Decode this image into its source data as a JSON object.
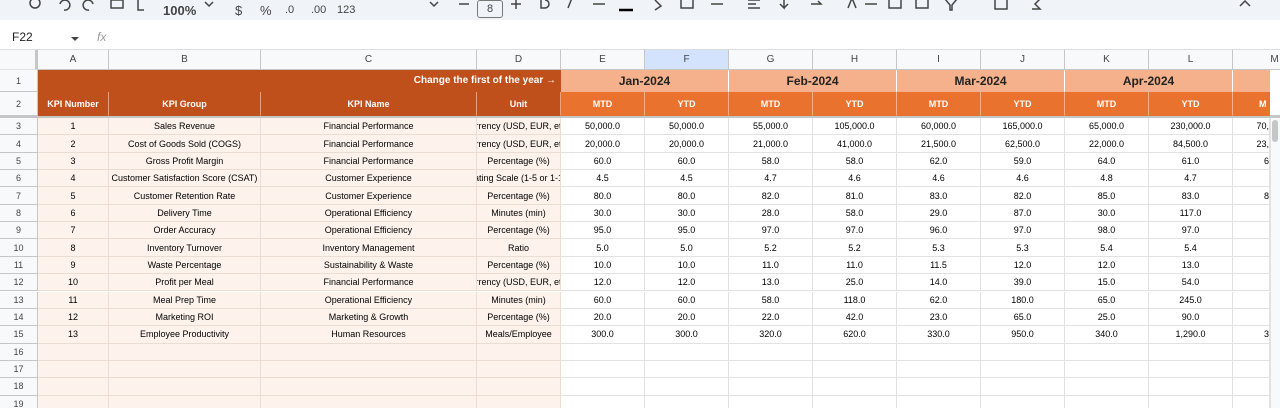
{
  "toolbar": {
    "zoom": "100%",
    "currency": "$",
    "percent": "%",
    "decrease_decimals": ".0",
    "increase_decimals": ".00",
    "more_formats": "123",
    "font_size": "8"
  },
  "formula_bar": {
    "cell_ref": "F22",
    "fx": "fx"
  },
  "columns": [
    "A",
    "B",
    "C",
    "D",
    "E",
    "F",
    "G",
    "H",
    "I",
    "J",
    "K",
    "L",
    "M"
  ],
  "row_numbers": [
    1,
    2,
    3,
    4,
    5,
    6,
    7,
    8,
    9,
    10,
    11,
    12,
    13,
    14,
    15,
    16,
    17,
    18,
    19
  ],
  "header": {
    "banner": "Change the first of the year →",
    "months": [
      "Jan-2024",
      "Feb-2024",
      "Mar-2024",
      "Apr-2024"
    ],
    "column_titles": [
      "KPI Number",
      "KPI Group",
      "KPI Name",
      "Unit"
    ],
    "subheaders": [
      "MTD",
      "YTD",
      "MTD",
      "YTD",
      "MTD",
      "YTD",
      "MTD",
      "YTD"
    ],
    "partial_subheader": "M"
  },
  "table": {
    "rows": [
      [
        "1",
        "Sales Revenue",
        "Financial Performance",
        "rrency (USD, EUR, et",
        "50,000.0",
        "50,000.0",
        "55,000.0",
        "105,000.0",
        "60,000.0",
        "165,000.0",
        "65,000.0",
        "230,000.0"
      ],
      [
        "2",
        "Cost of Goods Sold (COGS)",
        "Financial Performance",
        "rrency (USD, EUR, et",
        "20,000.0",
        "20,000.0",
        "21,000.0",
        "41,000.0",
        "21,500.0",
        "62,500.0",
        "22,000.0",
        "84,500.0"
      ],
      [
        "3",
        "Gross Profit Margin",
        "Financial Performance",
        "Percentage (%)",
        "60.0",
        "60.0",
        "58.0",
        "58.0",
        "62.0",
        "59.0",
        "64.0",
        "61.0"
      ],
      [
        "4",
        "Customer Satisfaction Score (CSAT)",
        "Customer Experience",
        "ating Scale (1-5 or 1-1",
        "4.5",
        "4.5",
        "4.7",
        "4.6",
        "4.6",
        "4.6",
        "4.8",
        "4.7"
      ],
      [
        "5",
        "Customer Retention Rate",
        "Customer Experience",
        "Percentage (%)",
        "80.0",
        "80.0",
        "82.0",
        "81.0",
        "83.0",
        "82.0",
        "85.0",
        "83.0"
      ],
      [
        "6",
        "Delivery Time",
        "Operational Efficiency",
        "Minutes (min)",
        "30.0",
        "30.0",
        "28.0",
        "58.0",
        "29.0",
        "87.0",
        "30.0",
        "117.0"
      ],
      [
        "7",
        "Order Accuracy",
        "Operational Efficiency",
        "Percentage (%)",
        "95.0",
        "95.0",
        "97.0",
        "97.0",
        "96.0",
        "97.0",
        "98.0",
        "97.0"
      ],
      [
        "8",
        "Inventory Turnover",
        "Inventory Management",
        "Ratio",
        "5.0",
        "5.0",
        "5.2",
        "5.2",
        "5.3",
        "5.3",
        "5.4",
        "5.4"
      ],
      [
        "9",
        "Waste Percentage",
        "Sustainability & Waste",
        "Percentage (%)",
        "10.0",
        "10.0",
        "11.0",
        "11.0",
        "11.5",
        "12.0",
        "12.0",
        "13.0"
      ],
      [
        "10",
        "Profit per Meal",
        "Financial Performance",
        "rrency (USD, EUR, et",
        "12.0",
        "12.0",
        "13.0",
        "25.0",
        "14.0",
        "39.0",
        "15.0",
        "54.0"
      ],
      [
        "11",
        "Meal Prep Time",
        "Operational Efficiency",
        "Minutes (min)",
        "60.0",
        "60.0",
        "58.0",
        "118.0",
        "62.0",
        "180.0",
        "65.0",
        "245.0"
      ],
      [
        "12",
        "Marketing ROI",
        "Marketing & Growth",
        "Percentage (%)",
        "20.0",
        "20.0",
        "22.0",
        "42.0",
        "23.0",
        "65.0",
        "25.0",
        "90.0"
      ],
      [
        "13",
        "Employee Productivity",
        "Human Resources",
        "Meals/Employee",
        "300.0",
        "300.0",
        "320.0",
        "620.0",
        "330.0",
        "950.0",
        "340.0",
        "1,290.0"
      ]
    ]
  },
  "partial_column": {
    "3": "70,",
    "4": "23,",
    "5": "6",
    "7": "8",
    "15": "3"
  }
}
